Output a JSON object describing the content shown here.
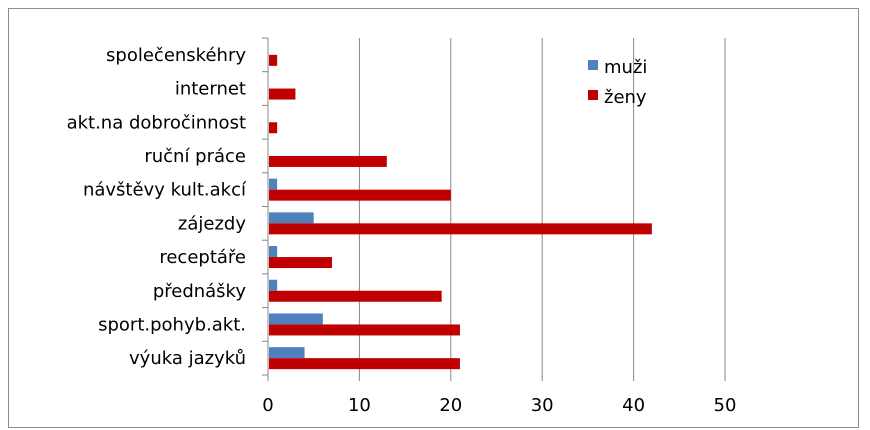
{
  "chart_data": {
    "type": "bar",
    "orientation": "horizontal",
    "categories": [
      "společenskéhry",
      "internet",
      "akt.na dobročinnost",
      "ruční práce",
      "návštěvy kult.akcí",
      "zájezdy",
      "receptáře",
      "přednášky",
      "sport.pohyb.akt.",
      "výuka jazyků"
    ],
    "series": [
      {
        "name": "muži",
        "color": "#4f81bd",
        "values": [
          0,
          0,
          0,
          0,
          1,
          5,
          1,
          1,
          6,
          4
        ]
      },
      {
        "name": "ženy",
        "color": "#c00000",
        "values": [
          1,
          3,
          1,
          13,
          20,
          42,
          7,
          19,
          21,
          21
        ]
      }
    ],
    "xlim": [
      0,
      50
    ],
    "xticks": [
      0,
      10,
      20,
      30,
      40,
      50
    ],
    "grid": true,
    "legend_position": "top-right",
    "title": "",
    "xlabel": "",
    "ylabel": ""
  }
}
